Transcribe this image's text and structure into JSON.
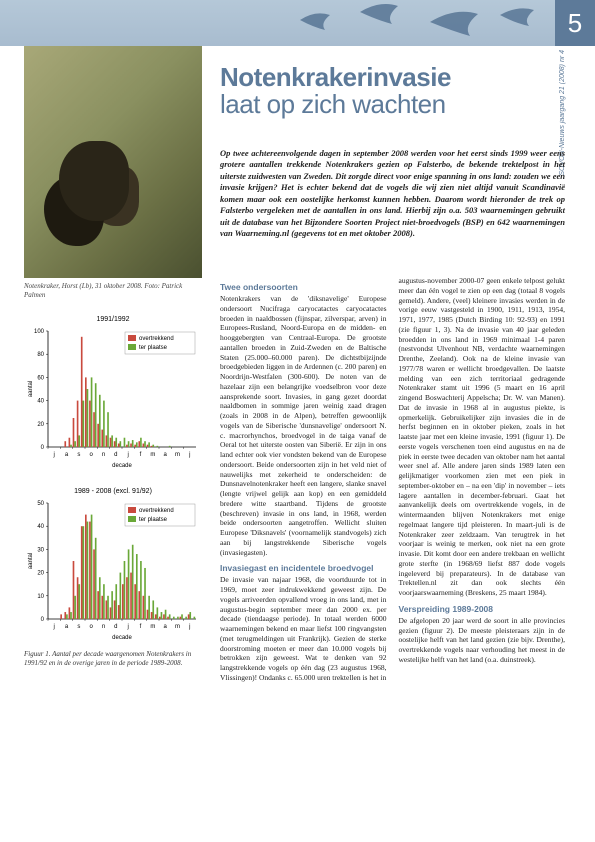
{
  "page_number": "5",
  "side_label": "SOVON-Nieuws jaargang 21 (2008) nr 4",
  "header": {
    "silhouette_color": "#5d7a99",
    "band_top": "#b5c8d8",
    "band_bottom": "#a8bccf"
  },
  "title": {
    "line1": "Notenkrakerinvasie",
    "line2": "laat op zich wachten",
    "color": "#5d7a99"
  },
  "photo_caption": "Notenkraker, Horst (Lb), 31 oktober 2008.\nFoto: Patrick Palmen",
  "intro": "Op twee achtereenvolgende dagen in september 2008 werden voor het eerst sinds 1999 weer eens grotere aantallen trekkende Notenkrakers gezien op Falsterbo, de bekende trektelpost in het uiterste zuidwesten van Zweden. Dit zorgde direct voor enige spanning in ons land: zouden we een invasie krijgen? Het is echter bekend dat de vogels die wij zien niet altijd vanuit Scandinavië komen maar ook een oostelijke herkomst kunnen hebben. Daarom wordt hieronder de trek op Falsterbo vergeleken met de aantallen in ons land. Hierbij zijn o.a. 503 waarnemingen gebruikt uit de database van het Bijzondere Soorten Project niet-broedvogels (BSP) en 642 waarnemingen van Waarneming.nl (gegevens tot en met oktober 2008).",
  "sections": {
    "s1_title": "Twee ondersoorten",
    "s1_body": "Notenkrakers van de 'diksnavelige' Europese ondersoort Nucifraga caryocatactes caryocatactes broeden in naaldbossen (fijnspar, zilverspar, arven) in Europees-Rusland, Noord-Europa en de midden- en hooggebergten van Centraal-Europa. De grootste aantallen broeden in Zuid-Zweden en de Baltische Staten (25.000–60.000 paren). De dichtstbijzijnde broedgebieden liggen in de Ardennen (c. 200 paren) en Noordrijn-Westfalen (300-600). De noten van de hazelaar zijn een belangrijke voedselbron voor deze aansprekende soort. Invasies, in gang gezet doordat naaldbomen in sommige jaren weinig zaad dragen (zoals in 2008 in de Alpen), betreffen gewoonlijk vogels van de Siberische 'dunsnavelige' ondersoort N. c. macrorhynchos, broedvogel in de taiga vanaf de Oeral tot het uiterste oosten van Siberië. Er zijn in ons land echter ook vier vondsten bekend van de Europese ondersoort. Beide ondersoorten zijn in het veld niet of nauwelijks met zekerheid te onderscheiden: de Dunsnavelnotenkraker heeft een langere, slanke snavel (lengte vrijwel gelijk aan kop) en een gemiddeld bredere witte staartband. Tijdens de grootste (beschreven) invasie in ons land, in 1968, werden beide ondersoorten aangetroffen. Wellicht sluiten Europese 'Diksnavels' (voornamelijk standvogels) zich aan bij langstrekkende Siberische vogels (invasiegasten).",
    "s2_title": "Invasiegast en incidentele broedvogel",
    "s2_body": "De invasie van najaar 1968, die voortduurde tot in 1969, moet zeer indrukwekkend geweest zijn. De vogels arriveerden opvallend vroeg in ons land, met in augustus-begin september meer dan 2000 ex. per decade (tiendaagse periode). In totaal werden 6000 waarnemingen bekend en maar liefst 100 ringvangsten (met terugmeldingen uit Frankrijk). Gezien de sterke doorstroming moeten er meer dan 10.000 vogels bij betrokken zijn geweest. Wat te denken van 92 langstrekkende vogels op één dag (23 augustus 1968, Vlissingen)! Ondanks c. 65.000 uren trektellen is het in",
    "s3_body": "augustus-november 2000-07 geen enkele telpost gelukt meer dan één vogel te zien op een dag (totaal 8 vogels gemeld). Andere, (veel) kleinere invasies werden in de vorige eeuw vastgesteld in 1900, 1911, 1913, 1954, 1971, 1977, 1985 (Dutch Birding 10: 92-93) en 1991 (zie figuur 1, 3). Na de invasie van 40 jaar geleden broedden in ons land in 1969 minimaal 1-4 paren (nestvondst Ulvenhout NB, verdachte waarnemingen Drenthe, Zeeland). Ook na de kleine invasie van 1977/78 waren er wellicht broedgevallen. De laatste melding van een zich territoriaal gedragende Notenkraker stamt uit 1996 (5 maart en 16 april zingend Boswachterij Appelscha; Dr. W. van Manen). Dat de invasie in 1968 al in augustus piekte, is opmerkelijk. Gebruikelijker zijn invasies die in de herfst beginnen en in oktober pieken, zoals in het laatste jaar met een kleine invasie, 1991 (figuur 1). De eerste vogels verschenen toen eind augustus en na de piek in eerste twee decaden van oktober nam het aantal weer snel af. Alle andere jaren sinds 1989 laten een gelijkmatiger voorkomen zien met een piek in september-oktober en – na een 'dip' in november – iets lagere aantallen in december-februari. Gaat het aanvankelijk deels om overtrekkende vogels, in de wintermaanden blijven Notenkrakers met enige regelmaat langere tijd pleisteren. In maart-juli is de Notenkraker zeer zeldzaam. Van terugtrek in het voorjaar is weinig te merken, ook niet na een grote invasie. Dit komt door een andere trekbaan en wellicht grote sterfte (in 1968/69 liefst 887 dode vogels ingeleverd bij preparateurs). In de database van Trektellen.nl zit dan ook slechts één voorjaarswaarneming (Breskens, 25 maart 1984).",
    "s4_title": "Verspreiding 1989-2008",
    "s4_body": "De afgelopen 20 jaar werd de soort in alle provincies gezien (figuur 2). De meeste pleisteraars zijn in de oostelijke helft van het land gezien (zie bijv. Drenthe), overtrekkende vogels naar verhouding het meest in de westelijke helft van het land (o.a. duinstreek)."
  },
  "chart1": {
    "title": "1991/1992",
    "type": "bar",
    "legend": {
      "a": "overtrekkend",
      "b": "ter plaatse"
    },
    "colors": {
      "a": "#c94a3e",
      "b": "#6aa838",
      "axis": "#000000",
      "bg": "#ffffff"
    },
    "months": [
      "j",
      "a",
      "s",
      "o",
      "n",
      "d",
      "j",
      "f",
      "m",
      "a",
      "m",
      "j"
    ],
    "xaxis_label": "decade",
    "yaxis_label": "aantal",
    "ylim": [
      0,
      100
    ],
    "yticks": [
      0,
      20,
      40,
      60,
      80,
      100
    ],
    "series_a": [
      0,
      0,
      0,
      0,
      5,
      8,
      25,
      40,
      95,
      60,
      40,
      30,
      20,
      15,
      10,
      8,
      5,
      3,
      0,
      2,
      3,
      2,
      5,
      3,
      2,
      1,
      0,
      0,
      0,
      0,
      0,
      0,
      0,
      0,
      0,
      0
    ],
    "series_b": [
      0,
      0,
      0,
      0,
      0,
      2,
      5,
      10,
      40,
      50,
      60,
      55,
      45,
      40,
      30,
      10,
      8,
      5,
      8,
      5,
      6,
      4,
      8,
      5,
      4,
      2,
      1,
      0,
      0,
      1,
      0,
      0,
      0,
      0,
      0,
      0
    ]
  },
  "chart2": {
    "title": "1989 - 2008 (excl. 91/92)",
    "type": "bar",
    "legend": {
      "a": "overtrekkend",
      "b": "ter plaatse"
    },
    "colors": {
      "a": "#c94a3e",
      "b": "#6aa838",
      "axis": "#000000",
      "bg": "#ffffff"
    },
    "months": [
      "j",
      "a",
      "s",
      "o",
      "n",
      "d",
      "j",
      "f",
      "m",
      "a",
      "m",
      "j"
    ],
    "xaxis_label": "decade",
    "yaxis_label": "aantal",
    "ylim": [
      0,
      50
    ],
    "yticks": [
      0,
      10,
      20,
      30,
      40,
      50
    ],
    "series_a": [
      0,
      0,
      0,
      2,
      3,
      5,
      25,
      18,
      40,
      45,
      42,
      30,
      12,
      10,
      8,
      5,
      8,
      6,
      15,
      18,
      20,
      15,
      12,
      10,
      4,
      3,
      2,
      1,
      2,
      1,
      0,
      0,
      1,
      0,
      2,
      0
    ],
    "series_b": [
      0,
      0,
      0,
      0,
      2,
      3,
      10,
      15,
      40,
      42,
      45,
      35,
      18,
      15,
      10,
      12,
      15,
      20,
      25,
      30,
      32,
      28,
      25,
      22,
      10,
      8,
      5,
      3,
      4,
      2,
      1,
      1,
      2,
      1,
      3,
      1
    ]
  },
  "chart_caption": "Figuur 1. Aantal per decade waargenomen Notenkrakers in 1991/92 en in de overige jaren in de periode 1989-2008."
}
